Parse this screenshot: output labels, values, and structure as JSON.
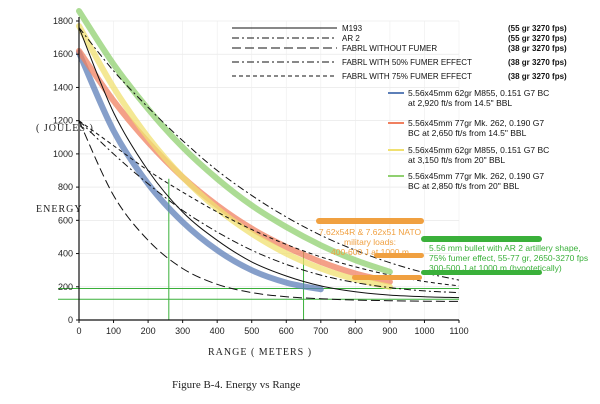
{
  "chart_data": {
    "type": "line",
    "caption": "Figure B-4.  Energy vs Range",
    "xlabel": "RANGE    ( METERS )",
    "ylabel": "ENERGY",
    "ylabel_unit": "( JOULES )",
    "xlim": [
      0,
      1100
    ],
    "ylim": [
      0,
      1800
    ],
    "xticks": [
      0,
      100,
      200,
      300,
      400,
      500,
      600,
      700,
      800,
      900,
      1000,
      1100
    ],
    "yticks": [
      0,
      200,
      400,
      600,
      800,
      1000,
      1200,
      1400,
      1600,
      1800
    ],
    "x": [
      0,
      100,
      200,
      300,
      400,
      500,
      600,
      700,
      800,
      900,
      1000,
      1100
    ],
    "series_legacy": [
      {
        "name": "M193",
        "detail": "(55 gr 3270 fps)",
        "dash": "solid",
        "values": [
          1760,
          1250,
          900,
          650,
          480,
          350,
          265,
          205,
          170,
          150,
          140,
          135
        ]
      },
      {
        "name": "AR 2",
        "detail": "(55 gr 3270 fps)",
        "dash": "dashdot",
        "values": [
          1760,
          1500,
          1280,
          1080,
          900,
          750,
          620,
          510,
          420,
          345,
          285,
          240
        ]
      },
      {
        "name": "FABRL  WITHOUT  FUMER",
        "detail": "(38 gr 3270 fps)",
        "dash": "longdash",
        "values": [
          1200,
          750,
          480,
          310,
          215,
          165,
          140,
          128,
          120,
          116,
          113,
          112
        ]
      },
      {
        "name": "FABRL  WITH  50%  FUMER  EFFECT",
        "detail": "(38 gr 3270 fps)",
        "dash": "dashdot",
        "values": [
          1200,
          1000,
          820,
          660,
          530,
          420,
          335,
          270,
          225,
          195,
          175,
          165
        ]
      },
      {
        "name": "FABRL  WITH  75%  FUMER  EFFECT",
        "detail": "(38 gr 3270 fps)",
        "dash": "dashed",
        "values": [
          1200,
          1050,
          900,
          770,
          650,
          545,
          455,
          380,
          320,
          270,
          232,
          205
        ]
      }
    ],
    "series_modern": [
      {
        "name": "5.56x45mm 62gr M855, 0.151 G7 BC at 2,920 ft/s from 14.5\" BBL",
        "color": "#5d7fb8",
        "values": [
          1610,
          1140,
          820,
          590,
          420,
          300,
          225,
          185,
          null,
          null,
          null,
          null
        ]
      },
      {
        "name": "5.56x45mm 77gr Mk. 262, 0.190 G7 BC at 2,650 ft/s from 14.5\" BBL",
        "color": "#f08060",
        "values": [
          1620,
          1320,
          1070,
          860,
          690,
          550,
          440,
          350,
          280,
          230,
          null,
          null
        ]
      },
      {
        "name": "5.56x45mm 62gr M855, 0.151 G7 BC at 3,150 ft/s from 20\" BBL",
        "color": "#f0e070",
        "values": [
          1770,
          1400,
          1100,
          860,
          670,
          520,
          400,
          310,
          245,
          200,
          null,
          null
        ]
      },
      {
        "name": "5.56x45mm 77gr Mk. 262, 0.190 G7 BC at 2,850 ft/s from 20\" BBL",
        "color": "#90d070",
        "values": [
          1860,
          1540,
          1270,
          1040,
          850,
          690,
          560,
          450,
          360,
          290,
          null,
          null
        ]
      }
    ],
    "reference_lines": {
      "vertical_x": [
        260,
        650
      ],
      "horizontal_y": [
        190,
        125
      ]
    },
    "annotations": [
      {
        "text": [
          "7.62x54R & 7.62x51 NATO",
          "military loads:",
          "400-600 J at 1000 m"
        ],
        "color": "#f0a040"
      },
      {
        "text": [
          "5.56 mm bullet with AR 2 artillery shape,",
          "75% fumer effect, 55-77 gr, 2650-3270 fps",
          "300-500 J at 1000 m (hypotetically)"
        ],
        "color": "#3ab03a"
      }
    ]
  }
}
